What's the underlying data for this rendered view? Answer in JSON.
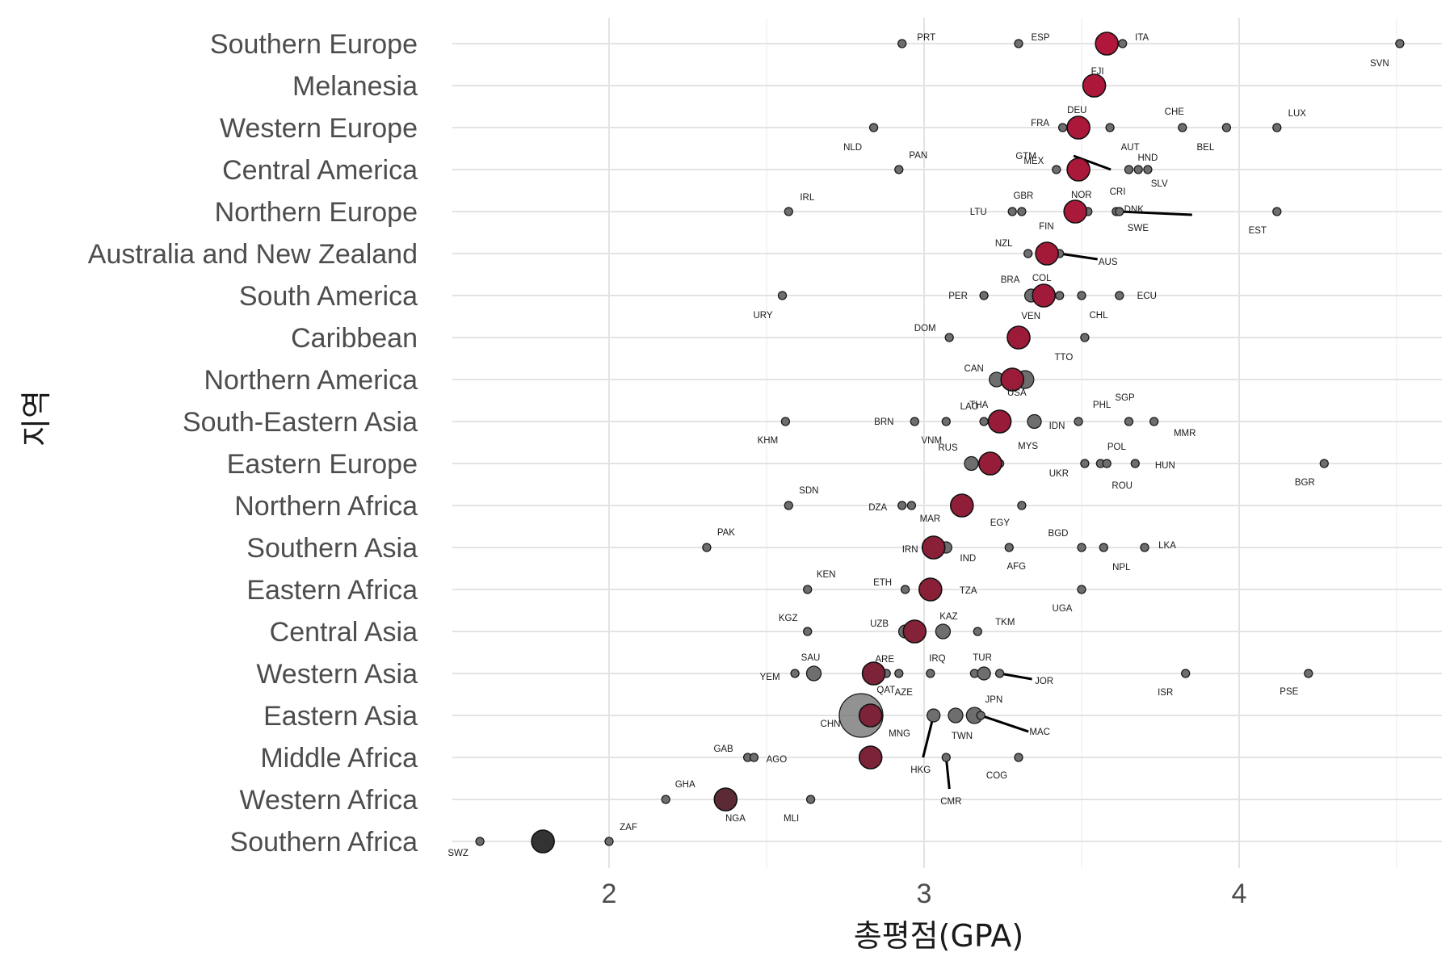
{
  "chart_data": {
    "type": "scatter",
    "title": "",
    "xlabel": "총평점(GPA)",
    "ylabel": "지역",
    "xlim": [
      1.5,
      4.65
    ],
    "xticks": [
      2,
      3,
      4
    ],
    "xtick_labels": [
      "2",
      "3",
      "4"
    ],
    "grid": true,
    "legend": "none",
    "colors": {
      "mean_high": "#b0173a",
      "mean_low": "#333333",
      "country": "#6e6e6e"
    },
    "categories": [
      "Southern Europe",
      "Melanesia",
      "Western Europe",
      "Central America",
      "Northern Europe",
      "Australia and New Zealand",
      "South America",
      "Caribbean",
      "Northern America",
      "South-Eastern Asia",
      "Eastern Europe",
      "Northern Africa",
      "Southern Asia",
      "Eastern Africa",
      "Central Asia",
      "Western Asia",
      "Eastern Asia",
      "Middle Africa",
      "Western Africa",
      "Southern Africa"
    ],
    "region_means": [
      {
        "region": "Southern Europe",
        "gpa": 3.58
      },
      {
        "region": "Melanesia",
        "gpa": 3.54
      },
      {
        "region": "Western Europe",
        "gpa": 3.49
      },
      {
        "region": "Central America",
        "gpa": 3.49
      },
      {
        "region": "Northern Europe",
        "gpa": 3.48
      },
      {
        "region": "Australia and New Zealand",
        "gpa": 3.39
      },
      {
        "region": "South America",
        "gpa": 3.38
      },
      {
        "region": "Caribbean",
        "gpa": 3.3
      },
      {
        "region": "Northern America",
        "gpa": 3.28
      },
      {
        "region": "South-Eastern Asia",
        "gpa": 3.24
      },
      {
        "region": "Eastern Europe",
        "gpa": 3.21
      },
      {
        "region": "Northern Africa",
        "gpa": 3.12
      },
      {
        "region": "Southern Asia",
        "gpa": 3.03
      },
      {
        "region": "Eastern Africa",
        "gpa": 3.02
      },
      {
        "region": "Central Asia",
        "gpa": 2.97
      },
      {
        "region": "Western Asia",
        "gpa": 2.84
      },
      {
        "region": "Eastern Asia",
        "gpa": 2.83
      },
      {
        "region": "Middle Africa",
        "gpa": 2.83
      },
      {
        "region": "Western Africa",
        "gpa": 2.37
      },
      {
        "region": "Southern Africa",
        "gpa": 1.79
      }
    ],
    "countries": [
      {
        "code": "PRT",
        "region": "Southern Europe",
        "gpa": 2.93
      },
      {
        "code": "ESP",
        "region": "Southern Europe",
        "gpa": 3.3
      },
      {
        "code": "ITA",
        "region": "Southern Europe",
        "gpa": 3.63
      },
      {
        "code": "SVN",
        "region": "Southern Europe",
        "gpa": 4.51
      },
      {
        "code": "FJI",
        "region": "Melanesia",
        "gpa": 3.54
      },
      {
        "code": "NLD",
        "region": "Western Europe",
        "gpa": 2.84
      },
      {
        "code": "FRA",
        "region": "Western Europe",
        "gpa": 3.44
      },
      {
        "code": "DEU",
        "region": "Western Europe",
        "gpa": 3.47
      },
      {
        "code": "AUT",
        "region": "Western Europe",
        "gpa": 3.59
      },
      {
        "code": "CHE",
        "region": "Western Europe",
        "gpa": 3.82
      },
      {
        "code": "BEL",
        "region": "Western Europe",
        "gpa": 3.96
      },
      {
        "code": "LUX",
        "region": "Western Europe",
        "gpa": 4.12
      },
      {
        "code": "PAN",
        "region": "Central America",
        "gpa": 2.92
      },
      {
        "code": "MEX",
        "region": "Central America",
        "gpa": 3.42
      },
      {
        "code": "GTM",
        "region": "Central America",
        "gpa": 3.49
      },
      {
        "code": "CRI",
        "region": "Central America",
        "gpa": 3.65
      },
      {
        "code": "SLV",
        "region": "Central America",
        "gpa": 3.68
      },
      {
        "code": "HND",
        "region": "Central America",
        "gpa": 3.71
      },
      {
        "code": "IRL",
        "region": "Northern Europe",
        "gpa": 2.57
      },
      {
        "code": "LTU",
        "region": "Northern Europe",
        "gpa": 3.28
      },
      {
        "code": "GBR",
        "region": "Northern Europe",
        "gpa": 3.31
      },
      {
        "code": "FIN",
        "region": "Northern Europe",
        "gpa": 3.46
      },
      {
        "code": "NOR",
        "region": "Northern Europe",
        "gpa": 3.52
      },
      {
        "code": "SWE",
        "region": "Northern Europe",
        "gpa": 3.61
      },
      {
        "code": "DNK",
        "region": "Northern Europe",
        "gpa": 3.62
      },
      {
        "code": "EST",
        "region": "Northern Europe",
        "gpa": 4.12
      },
      {
        "code": "NZL",
        "region": "Australia and New Zealand",
        "gpa": 3.33
      },
      {
        "code": "AUS",
        "region": "Australia and New Zealand",
        "gpa": 3.43
      },
      {
        "code": "URY",
        "region": "South America",
        "gpa": 2.55
      },
      {
        "code": "PER",
        "region": "South America",
        "gpa": 3.19
      },
      {
        "code": "BRA",
        "region": "South America",
        "gpa": 3.34
      },
      {
        "code": "VEN",
        "region": "South America",
        "gpa": 3.38
      },
      {
        "code": "COL",
        "region": "South America",
        "gpa": 3.43
      },
      {
        "code": "CHL",
        "region": "South America",
        "gpa": 3.5
      },
      {
        "code": "ECU",
        "region": "South America",
        "gpa": 3.62
      },
      {
        "code": "DOM",
        "region": "Caribbean",
        "gpa": 3.08
      },
      {
        "code": "TTO",
        "region": "Caribbean",
        "gpa": 3.51
      },
      {
        "code": "CAN",
        "region": "Northern America",
        "gpa": 3.23
      },
      {
        "code": "USA",
        "region": "Northern America",
        "gpa": 3.32
      },
      {
        "code": "KHM",
        "region": "South-Eastern Asia",
        "gpa": 2.56
      },
      {
        "code": "BRN",
        "region": "South-Eastern Asia",
        "gpa": 2.97
      },
      {
        "code": "VNM",
        "region": "South-Eastern Asia",
        "gpa": 3.07
      },
      {
        "code": "LAO",
        "region": "South-Eastern Asia",
        "gpa": 3.19
      },
      {
        "code": "THA",
        "region": "South-Eastern Asia",
        "gpa": 3.22
      },
      {
        "code": "IDN",
        "region": "South-Eastern Asia",
        "gpa": 3.35
      },
      {
        "code": "PHL",
        "region": "South-Eastern Asia",
        "gpa": 3.49
      },
      {
        "code": "SGP",
        "region": "South-Eastern Asia",
        "gpa": 3.65
      },
      {
        "code": "MMR",
        "region": "South-Eastern Asia",
        "gpa": 3.73
      },
      {
        "code": "RUS",
        "region": "Eastern Europe",
        "gpa": 3.15
      },
      {
        "code": "MYS",
        "region": "Eastern Europe",
        "gpa": 3.24
      },
      {
        "code": "UKR",
        "region": "Eastern Europe",
        "gpa": 3.51
      },
      {
        "code": "POL",
        "region": "Eastern Europe",
        "gpa": 3.56
      },
      {
        "code": "ROU",
        "region": "Eastern Europe",
        "gpa": 3.58
      },
      {
        "code": "HUN",
        "region": "Eastern Europe",
        "gpa": 3.67
      },
      {
        "code": "BGR",
        "region": "Eastern Europe",
        "gpa": 4.27
      },
      {
        "code": "SDN",
        "region": "Northern Africa",
        "gpa": 2.57
      },
      {
        "code": "DZA",
        "region": "Northern Africa",
        "gpa": 2.93
      },
      {
        "code": "MAR",
        "region": "Northern Africa",
        "gpa": 2.96
      },
      {
        "code": "EGY",
        "region": "Northern Africa",
        "gpa": 3.31
      },
      {
        "code": "PAK",
        "region": "Southern Asia",
        "gpa": 2.31
      },
      {
        "code": "IRN",
        "region": "Southern Asia",
        "gpa": 3.04
      },
      {
        "code": "IND",
        "region": "Southern Asia",
        "gpa": 3.07
      },
      {
        "code": "AFG",
        "region": "Southern Asia",
        "gpa": 3.27
      },
      {
        "code": "BGD",
        "region": "Southern Asia",
        "gpa": 3.5
      },
      {
        "code": "NPL",
        "region": "Southern Asia",
        "gpa": 3.57
      },
      {
        "code": "LKA",
        "region": "Southern Asia",
        "gpa": 3.7
      },
      {
        "code": "KEN",
        "region": "Eastern Africa",
        "gpa": 2.63
      },
      {
        "code": "ETH",
        "region": "Eastern Africa",
        "gpa": 2.94
      },
      {
        "code": "TZA",
        "region": "Eastern Africa",
        "gpa": 3.03
      },
      {
        "code": "UGA",
        "region": "Eastern Africa",
        "gpa": 3.5
      },
      {
        "code": "KGZ",
        "region": "Central Asia",
        "gpa": 2.63
      },
      {
        "code": "UZB",
        "region": "Central Asia",
        "gpa": 2.94
      },
      {
        "code": "KAZ",
        "region": "Central Asia",
        "gpa": 3.06
      },
      {
        "code": "TKM",
        "region": "Central Asia",
        "gpa": 3.17
      },
      {
        "code": "YEM",
        "region": "Western Asia",
        "gpa": 2.59
      },
      {
        "code": "SAU",
        "region": "Western Asia",
        "gpa": 2.65
      },
      {
        "code": "ARE",
        "region": "Western Asia",
        "gpa": 2.88
      },
      {
        "code": "QAT",
        "region": "Western Asia",
        "gpa": 2.92
      },
      {
        "code": "AZE",
        "region": "Western Asia",
        "gpa": 3.02
      },
      {
        "code": "IRQ",
        "region": "Western Asia",
        "gpa": 3.16
      },
      {
        "code": "TUR",
        "region": "Western Asia",
        "gpa": 3.19
      },
      {
        "code": "JOR",
        "region": "Western Asia",
        "gpa": 3.24
      },
      {
        "code": "ISR",
        "region": "Western Asia",
        "gpa": 3.83
      },
      {
        "code": "PSE",
        "region": "Western Asia",
        "gpa": 4.22
      },
      {
        "code": "CHN",
        "region": "Eastern Asia",
        "gpa": 2.8
      },
      {
        "code": "MNG",
        "region": "Eastern Asia",
        "gpa": 2.84
      },
      {
        "code": "HKG",
        "region": "Eastern Asia",
        "gpa": 3.03
      },
      {
        "code": "TWN",
        "region": "Eastern Asia",
        "gpa": 3.1
      },
      {
        "code": "JPN",
        "region": "Eastern Asia",
        "gpa": 3.16
      },
      {
        "code": "MAC",
        "region": "Eastern Asia",
        "gpa": 3.18
      },
      {
        "code": "GAB",
        "region": "Middle Africa",
        "gpa": 2.44
      },
      {
        "code": "AGO",
        "region": "Middle Africa",
        "gpa": 2.46
      },
      {
        "code": "CMR",
        "region": "Middle Africa",
        "gpa": 3.07
      },
      {
        "code": "COG",
        "region": "Middle Africa",
        "gpa": 3.3
      },
      {
        "code": "GHA",
        "region": "Western Africa",
        "gpa": 2.18
      },
      {
        "code": "NGA",
        "region": "Western Africa",
        "gpa": 2.36
      },
      {
        "code": "MLI",
        "region": "Western Africa",
        "gpa": 2.64
      },
      {
        "code": "SWZ",
        "region": "Southern Africa",
        "gpa": 1.59
      },
      {
        "code": "ZAF",
        "region": "Southern Africa",
        "gpa": 2.0
      }
    ]
  }
}
